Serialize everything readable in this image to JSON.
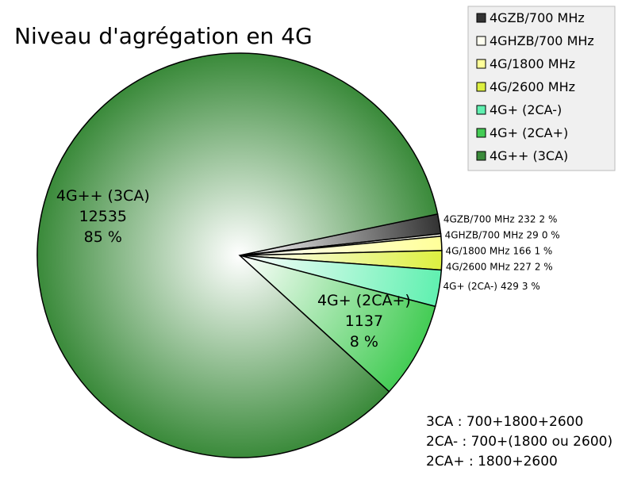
{
  "chart_data": {
    "type": "pie",
    "title": "Niveau d'agrégation en 4G",
    "categories": [
      "4GZB/700 MHz",
      "4GHZB/700 MHz",
      "4G/1800 MHz",
      "4G/2600 MHz",
      "4G+ (2CA-)",
      "4G+ (2CA+)",
      "4G++ (3CA)"
    ],
    "values": [
      232,
      29,
      166,
      227,
      429,
      1137,
      12535
    ],
    "percent_labels": [
      "2 %",
      "0 %",
      "1 %",
      "2 %",
      "3 %",
      "8 %",
      "85 %"
    ],
    "colors": [
      "#333333",
      "#fffff0",
      "#ffff99",
      "#ddf040",
      "#60f0b0",
      "#44cc55",
      "#3a8a3a"
    ],
    "legend": "top-right",
    "notes": [
      "3CA : 700+1800+2600",
      "2CA- : 700+(1800 ou 2600)",
      "2CA+ : 1800+2600"
    ]
  }
}
